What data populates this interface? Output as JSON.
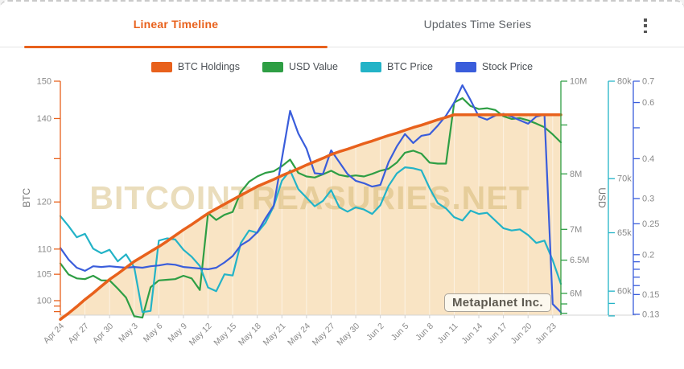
{
  "header": {
    "tabs": [
      {
        "label": "Linear Timeline",
        "active": true
      },
      {
        "label": "Updates Time Series",
        "active": false
      }
    ],
    "menu_icon": "kebab-menu"
  },
  "legend": [
    {
      "label": "BTC Holdings",
      "color": "#e8611c"
    },
    {
      "label": "USD Value",
      "color": "#2e9e44"
    },
    {
      "label": "BTC Price",
      "color": "#23b3c7"
    },
    {
      "label": "Stock Price",
      "color": "#3a5ddb"
    }
  ],
  "watermark": "BITCOINTREASURIES.NET",
  "annotation": "Metaplanet Inc.",
  "colors": {
    "accent": "#e8611c",
    "area_fill": "#f9e4c4",
    "grid": "rgba(255,255,255,0.55)",
    "axis_text": "#8a8a8a",
    "watermark": "rgba(205,173,95,0.42)",
    "x_axis_line": "#d4d4d4"
  },
  "chart_data": {
    "type": "line",
    "title": "",
    "grid": "off",
    "legend_position": "top",
    "x_dates": [
      "Apr 24",
      "Apr 25",
      "Apr 26",
      "Apr 27",
      "Apr 28",
      "Apr 29",
      "Apr 30",
      "May 1",
      "May 2",
      "May 3",
      "May 4",
      "May 5",
      "May 6",
      "May 7",
      "May 8",
      "May 9",
      "May 10",
      "May 11",
      "May 12",
      "May 13",
      "May 14",
      "May 15",
      "May 16",
      "May 17",
      "May 18",
      "May 19",
      "May 20",
      "May 21",
      "May 22",
      "May 23",
      "May 24",
      "May 25",
      "May 26",
      "May 27",
      "May 28",
      "May 29",
      "May 30",
      "May 31",
      "Jun 1",
      "Jun 2",
      "Jun 3",
      "Jun 4",
      "Jun 5",
      "Jun 6",
      "Jun 7",
      "Jun 8",
      "Jun 9",
      "Jun 10",
      "Jun 11",
      "Jun 12",
      "Jun 13",
      "Jun 14",
      "Jun 15",
      "Jun 16",
      "Jun 17",
      "Jun 18",
      "Jun 19",
      "Jun 20",
      "Jun 21",
      "Jun 22",
      "Jun 23",
      "Jun 24"
    ],
    "x_label_every": 3,
    "axes": [
      {
        "id": "btc",
        "title": "BTC",
        "color": "#e8611c",
        "scale": "log",
        "top_value": 150,
        "bottom_value": 97.36,
        "ticks": [
          {
            "v": 150,
            "label": "150"
          },
          {
            "v": 140,
            "label": "140"
          },
          {
            "v": 130
          },
          {
            "v": 120,
            "label": "120"
          },
          {
            "v": 110,
            "label": "110"
          },
          {
            "v": 105,
            "label": "105"
          },
          {
            "v": 100,
            "label": "100"
          },
          {
            "v": 99
          },
          {
            "v": 98
          }
        ]
      },
      {
        "id": "usd_value",
        "title": "",
        "color": "#2e9e44",
        "scale": "log",
        "top_value": 10,
        "bottom_value": 5.694,
        "unit": "M",
        "ticks": [
          {
            "v": 10,
            "label": "10M"
          },
          {
            "v": 9
          },
          {
            "v": 8,
            "label": "8M"
          },
          {
            "v": 7,
            "label": "7M"
          },
          {
            "v": 6.5,
            "label": "6.5M"
          },
          {
            "v": 6,
            "label": "6M"
          },
          {
            "v": 5.85
          },
          {
            "v": 5.72
          }
        ]
      },
      {
        "id": "btc_price",
        "title": "USD",
        "color": "#23b3c7",
        "scale": "log",
        "top_value": 80,
        "bottom_value": 58.06,
        "unit": "k",
        "ticks": [
          {
            "v": 80,
            "label": "80k"
          },
          {
            "v": 70,
            "label": "70k"
          },
          {
            "v": 65,
            "label": "65k"
          },
          {
            "v": 60,
            "label": "60k"
          },
          {
            "v": 59
          },
          {
            "v": 58
          }
        ]
      },
      {
        "id": "stock",
        "title": "",
        "color": "#3a5ddb",
        "scale": "log",
        "top_value": 0.7,
        "bottom_value": 0.12925,
        "ticks": [
          {
            "v": 0.7,
            "label": "0.7"
          },
          {
            "v": 0.6,
            "label": "0.6"
          },
          {
            "v": 0.5
          },
          {
            "v": 0.4,
            "label": "0.4"
          },
          {
            "v": 0.3,
            "label": "0.3"
          },
          {
            "v": 0.25,
            "label": "0.25"
          },
          {
            "v": 0.2,
            "label": "0.2"
          },
          {
            "v": 0.19
          },
          {
            "v": 0.18
          },
          {
            "v": 0.17
          },
          {
            "v": 0.16
          },
          {
            "v": 0.15,
            "label": "0.15"
          },
          {
            "v": 0.13,
            "label": "0.13"
          }
        ]
      }
    ],
    "series": [
      {
        "name": "BTC Holdings",
        "axis": "btc",
        "color": "#e8611c",
        "width": 3.5,
        "fill": true,
        "values": [
          96.6,
          97.7,
          98.9,
          100.2,
          101.4,
          102.7,
          104,
          105.1,
          106.3,
          107.5,
          108.5,
          109.5,
          110.5,
          111.6,
          112.8,
          114,
          115.1,
          116.3,
          117.5,
          118.5,
          119.5,
          120.5,
          121.5,
          122.5,
          123.5,
          124.3,
          125.1,
          126,
          126.8,
          127.6,
          128.5,
          129.3,
          130.1,
          131,
          131.7,
          132.3,
          133,
          133.7,
          134.3,
          135,
          135.7,
          136.3,
          137,
          137.7,
          138.3,
          139,
          139.7,
          140.3,
          141,
          141,
          141,
          141,
          141,
          141,
          141,
          141,
          141,
          141,
          141,
          141,
          141,
          141
        ]
      },
      {
        "name": "USD Value",
        "axis": "usd_value",
        "color": "#2e9e44",
        "width": 2.2,
        "values": [
          6.45,
          6.28,
          6.22,
          6.21,
          6.26,
          6.19,
          6.19,
          6.07,
          5.94,
          5.68,
          5.66,
          6.09,
          6.19,
          6.2,
          6.21,
          6.26,
          6.22,
          6.05,
          7.28,
          7.16,
          7.25,
          7.3,
          7.66,
          7.85,
          7.95,
          8.02,
          8.05,
          8.15,
          8.28,
          8.02,
          7.95,
          7.93,
          7.99,
          8.06,
          7.98,
          7.95,
          7.97,
          7.95,
          8.0,
          8.06,
          8.1,
          8.22,
          8.42,
          8.46,
          8.4,
          8.22,
          8.2,
          8.2,
          9.5,
          9.6,
          9.42,
          9.35,
          9.37,
          9.33,
          9.19,
          9.13,
          9.15,
          9.1,
          9.03,
          8.95,
          8.8,
          8.63
        ]
      },
      {
        "name": "BTC Price",
        "axis": "btc_price",
        "color": "#23b3c7",
        "width": 2.2,
        "values": [
          66.5,
          65.6,
          64.6,
          64.9,
          63.6,
          63.2,
          63.5,
          62.5,
          63.1,
          62,
          58.3,
          58.4,
          64.3,
          64.5,
          64.4,
          63.5,
          62.9,
          62.1,
          60.3,
          60,
          61.4,
          61.3,
          64.1,
          65.2,
          65,
          65.9,
          67.4,
          69.8,
          70.8,
          69,
          68.2,
          67.4,
          67.9,
          68.9,
          67.3,
          66.9,
          67.3,
          67.1,
          66.7,
          67.5,
          69.3,
          70.5,
          71.1,
          71,
          70.8,
          69.1,
          67.7,
          67.2,
          66.4,
          66.1,
          67,
          66.7,
          66.8,
          66.1,
          65.4,
          65.2,
          65.3,
          64.8,
          64.1,
          64.3,
          62.6,
          60.6
        ]
      },
      {
        "name": "Stock Price",
        "axis": "stock",
        "color": "#3a5ddb",
        "width": 2.2,
        "values": [
          0.21,
          0.193,
          0.182,
          0.178,
          0.184,
          0.183,
          0.184,
          0.183,
          0.182,
          0.183,
          0.182,
          0.184,
          0.185,
          0.187,
          0.186,
          0.183,
          0.182,
          0.181,
          0.18,
          0.182,
          0.189,
          0.198,
          0.214,
          0.222,
          0.235,
          0.26,
          0.285,
          0.4,
          0.565,
          0.48,
          0.43,
          0.36,
          0.358,
          0.425,
          0.39,
          0.358,
          0.341,
          0.335,
          0.327,
          0.331,
          0.39,
          0.437,
          0.478,
          0.448,
          0.472,
          0.477,
          0.508,
          0.546,
          0.6,
          0.68,
          0.61,
          0.542,
          0.53,
          0.546,
          0.553,
          0.542,
          0.528,
          0.515,
          0.542,
          0.55,
          0.14,
          0.132
        ]
      }
    ]
  }
}
